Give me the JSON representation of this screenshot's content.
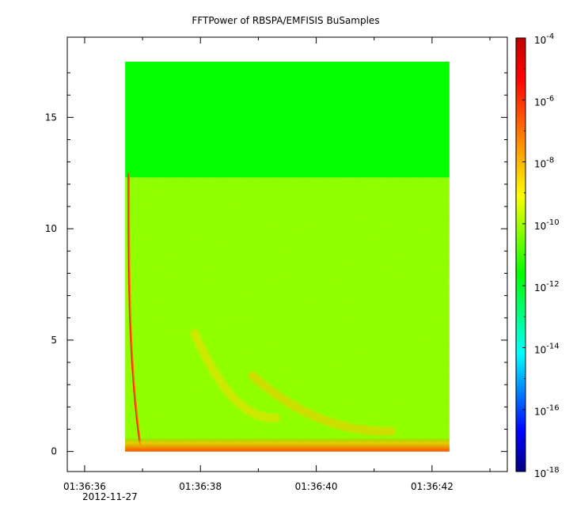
{
  "chart_data": {
    "type": "heatmap",
    "title": "FFTPower of RBSPA/EMFISIS  BuSamples",
    "xlabel": "",
    "ylabel": "",
    "x_tick_labels": [
      "01:36:36",
      "01:36:38",
      "01:36:40",
      "01:36:42"
    ],
    "x_tick_seconds": [
      36,
      38,
      40,
      42
    ],
    "x_date_label": "2012-11-27",
    "x_range_seconds": [
      35.7,
      43.3
    ],
    "data_x_range_seconds": [
      36.7,
      42.3
    ],
    "y_ticks": [
      0,
      5,
      10,
      15
    ],
    "y_range": [
      -0.9,
      18.6
    ],
    "data_y_range": [
      0,
      17.5
    ],
    "colorbar": {
      "scale": "log",
      "range": [
        1e-18,
        0.0001
      ],
      "tick_labels": [
        {
          "base": "10",
          "exp": "-4",
          "value": -4
        },
        {
          "base": "10",
          "exp": "-6",
          "value": -6
        },
        {
          "base": "10",
          "exp": "-8",
          "value": -8
        },
        {
          "base": "10",
          "exp": "-10",
          "value": -10
        },
        {
          "base": "10",
          "exp": "-12",
          "value": -12
        },
        {
          "base": "10",
          "exp": "-14",
          "value": -14
        },
        {
          "base": "10",
          "exp": "-16",
          "value": -16
        },
        {
          "base": "10",
          "exp": "-18",
          "value": -18
        }
      ],
      "colors": [
        "#00007f",
        "#0000ff",
        "#007fff",
        "#00ffff",
        "#00ff7f",
        "#00ff00",
        "#7fff00",
        "#ffff00",
        "#ffaa00",
        "#ff5500",
        "#ff0000",
        "#bf0000"
      ]
    },
    "regions": [
      {
        "y_range": [
          12.3,
          17.5
        ],
        "log_power": -11.6
      },
      {
        "y_range": [
          0,
          12.3
        ],
        "log_power": -10.2
      }
    ],
    "features": [
      {
        "kind": "dispersed whistler",
        "x_seconds": [
          36.75,
          36.95
        ],
        "y_range": [
          0.3,
          12.5
        ],
        "log_power": -6
      },
      {
        "kind": "chorus arc",
        "x_seconds": [
          37.9,
          39.3
        ],
        "y_range": [
          1.5,
          5.3
        ],
        "log_power": -8.5
      },
      {
        "kind": "chorus arc",
        "x_seconds": [
          38.9,
          41.3
        ],
        "y_range": [
          0.9,
          3.4
        ],
        "log_power": -8.2
      },
      {
        "kind": "low-frequency band",
        "x_seconds": [
          36.7,
          42.3
        ],
        "y_range": [
          0,
          0.4
        ],
        "log_power": -6.5
      }
    ]
  }
}
